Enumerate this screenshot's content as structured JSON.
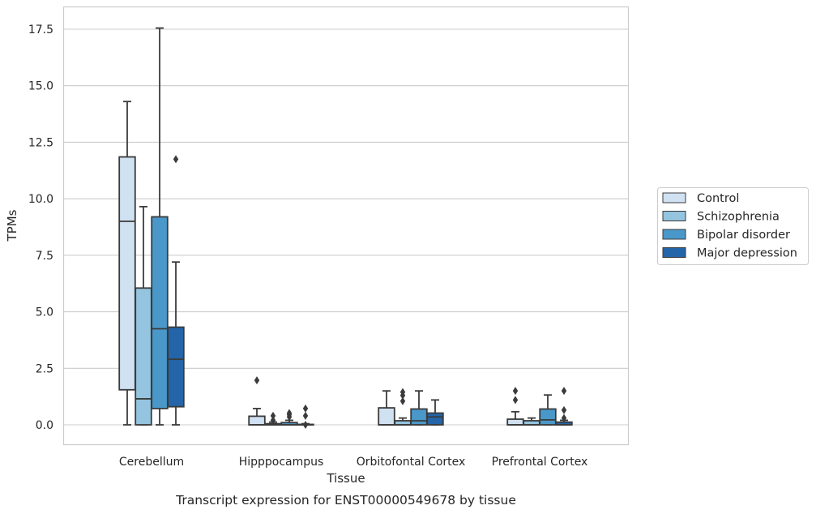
{
  "chart_data": {
    "type": "box",
    "xlabel": "Tissue",
    "ylabel": "TPMs",
    "caption": "Transcript expression for ENST00000549678 by tissue",
    "ylim": [
      -0.85,
      18.5
    ],
    "yticks": [
      "0.0",
      "2.5",
      "5.0",
      "7.5",
      "10.0",
      "12.5",
      "15.0",
      "17.5"
    ],
    "grid": "horizontal",
    "legend_position": "right",
    "categories": [
      "Cerebellum",
      "Hipppocampus",
      "Orbitofontal Cortex",
      "Prefrontal Cortex"
    ],
    "series": [
      {
        "name": "Control",
        "color": "#d0e1f2",
        "boxes": [
          {
            "whisker_low": 0.0,
            "q1": 1.55,
            "median": 9.0,
            "q3": 11.85,
            "whisker_high": 14.3,
            "outliers": []
          },
          {
            "whisker_low": 0.0,
            "q1": 0.0,
            "median": 0.0,
            "q3": 0.38,
            "whisker_high": 0.72,
            "outliers": [
              1.97
            ]
          },
          {
            "whisker_low": 0.0,
            "q1": 0.0,
            "median": 0.0,
            "q3": 0.75,
            "whisker_high": 1.5,
            "outliers": []
          },
          {
            "whisker_low": 0.0,
            "q1": 0.0,
            "median": 0.0,
            "q3": 0.25,
            "whisker_high": 0.58,
            "outliers": [
              1.1,
              1.5
            ]
          }
        ]
      },
      {
        "name": "Schizophrenia",
        "color": "#94c4df",
        "boxes": [
          {
            "whisker_low": 0.0,
            "q1": 0.0,
            "median": 1.15,
            "q3": 6.05,
            "whisker_high": 9.65,
            "outliers": []
          },
          {
            "whisker_low": 0.0,
            "q1": 0.0,
            "median": 0.0,
            "q3": 0.05,
            "whisker_high": 0.12,
            "outliers": [
              0.2,
              0.4
            ]
          },
          {
            "whisker_low": 0.0,
            "q1": 0.0,
            "median": 0.0,
            "q3": 0.18,
            "whisker_high": 0.3,
            "outliers": [
              1.05,
              1.3,
              1.45
            ]
          },
          {
            "whisker_low": 0.0,
            "q1": 0.0,
            "median": 0.0,
            "q3": 0.18,
            "whisker_high": 0.3,
            "outliers": []
          }
        ]
      },
      {
        "name": "Bipolar disorder",
        "color": "#4a98c9",
        "boxes": [
          {
            "whisker_low": 0.0,
            "q1": 0.72,
            "median": 4.25,
            "q3": 9.2,
            "whisker_high": 17.55,
            "outliers": []
          },
          {
            "whisker_low": 0.0,
            "q1": 0.0,
            "median": 0.0,
            "q3": 0.1,
            "whisker_high": 0.2,
            "outliers": [
              0.35,
              0.45,
              0.52
            ]
          },
          {
            "whisker_low": 0.0,
            "q1": 0.0,
            "median": 0.18,
            "q3": 0.7,
            "whisker_high": 1.5,
            "outliers": []
          },
          {
            "whisker_low": 0.0,
            "q1": 0.0,
            "median": 0.22,
            "q3": 0.7,
            "whisker_high": 1.32,
            "outliers": []
          }
        ]
      },
      {
        "name": "Major depression",
        "color": "#2464a9",
        "boxes": [
          {
            "whisker_low": 0.0,
            "q1": 0.8,
            "median": 2.9,
            "q3": 4.32,
            "whisker_high": 7.2,
            "outliers": [
              11.75
            ]
          },
          {
            "whisker_low": 0.0,
            "q1": 0.0,
            "median": 0.0,
            "q3": 0.02,
            "whisker_high": 0.05,
            "outliers": [
              0.0,
              0.4,
              0.72
            ]
          },
          {
            "whisker_low": 0.0,
            "q1": 0.0,
            "median": 0.35,
            "q3": 0.52,
            "whisker_high": 1.1,
            "outliers": []
          },
          {
            "whisker_low": 0.0,
            "q1": 0.0,
            "median": 0.0,
            "q3": 0.12,
            "whisker_high": 0.2,
            "outliers": [
              0.3,
              0.65,
              1.5
            ]
          }
        ]
      }
    ]
  }
}
